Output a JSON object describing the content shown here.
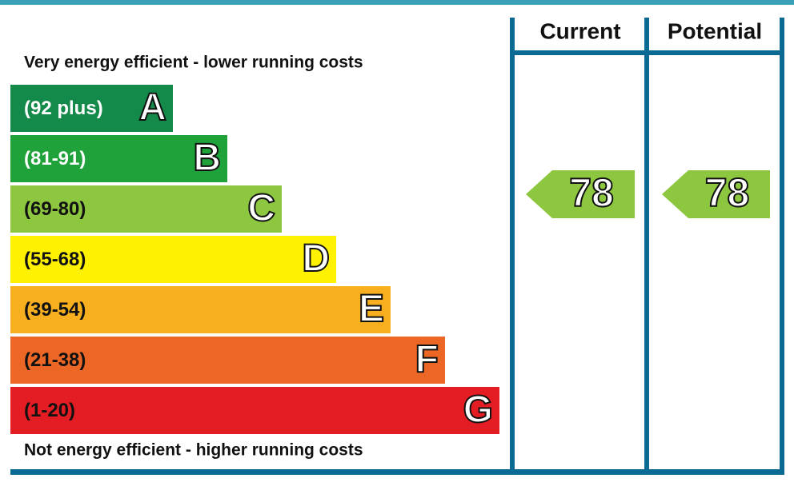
{
  "header": {
    "columns": [
      "Current",
      "Potential"
    ]
  },
  "top_note": "Very energy efficient - lower running costs",
  "bottom_note": "Not energy efficient - higher running costs",
  "bands": [
    {
      "range": "(92 plus)",
      "letter": "A"
    },
    {
      "range": "(81-91)",
      "letter": "B"
    },
    {
      "range": "(69-80)",
      "letter": "C"
    },
    {
      "range": "(55-68)",
      "letter": "D"
    },
    {
      "range": "(39-54)",
      "letter": "E"
    },
    {
      "range": "(21-38)",
      "letter": "F"
    },
    {
      "range": "(1-20)",
      "letter": "G"
    }
  ],
  "ratings": {
    "current": 78,
    "potential": 78
  }
}
